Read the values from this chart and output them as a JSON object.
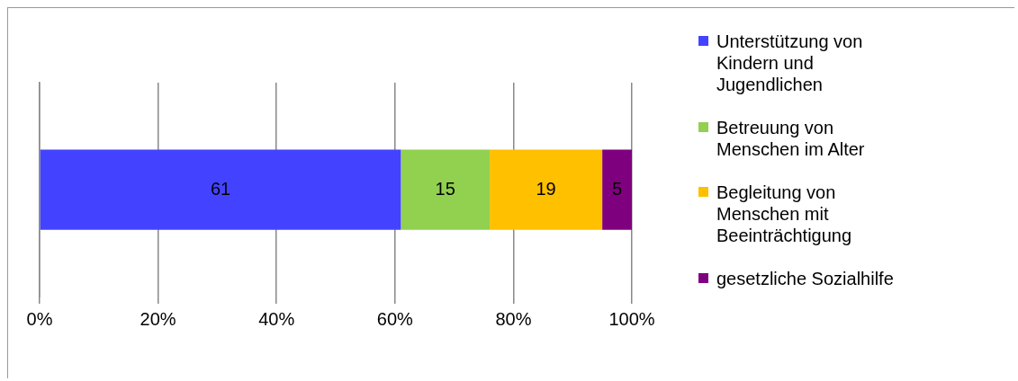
{
  "chart_data": {
    "type": "bar",
    "orientation": "horizontal",
    "stacked": true,
    "categories": [
      null
    ],
    "series": [
      {
        "name": "Unterstützung von Kindern und Jugendlichen",
        "color": "#4343ff",
        "values": [
          61
        ]
      },
      {
        "name": "Betreuung von Menschen im Alter",
        "color": "#92d050",
        "values": [
          15
        ]
      },
      {
        "name": "Begleitung von Menschen mit Beeinträchtigung",
        "color": "#ffc000",
        "values": [
          19
        ]
      },
      {
        "name": "gesetzliche Sozialhilfe",
        "color": "#7f007f",
        "values": [
          5
        ]
      }
    ],
    "xlim": [
      0,
      100
    ],
    "xticks": [
      {
        "value": 0,
        "label": "0%"
      },
      {
        "value": 20,
        "label": "20%"
      },
      {
        "value": 40,
        "label": "40%"
      },
      {
        "value": 60,
        "label": "60%"
      },
      {
        "value": 80,
        "label": "80%"
      },
      {
        "value": 100,
        "label": "100%"
      }
    ],
    "grid": "x",
    "legend": "right",
    "tick_labels": "x",
    "data_labels": true
  }
}
